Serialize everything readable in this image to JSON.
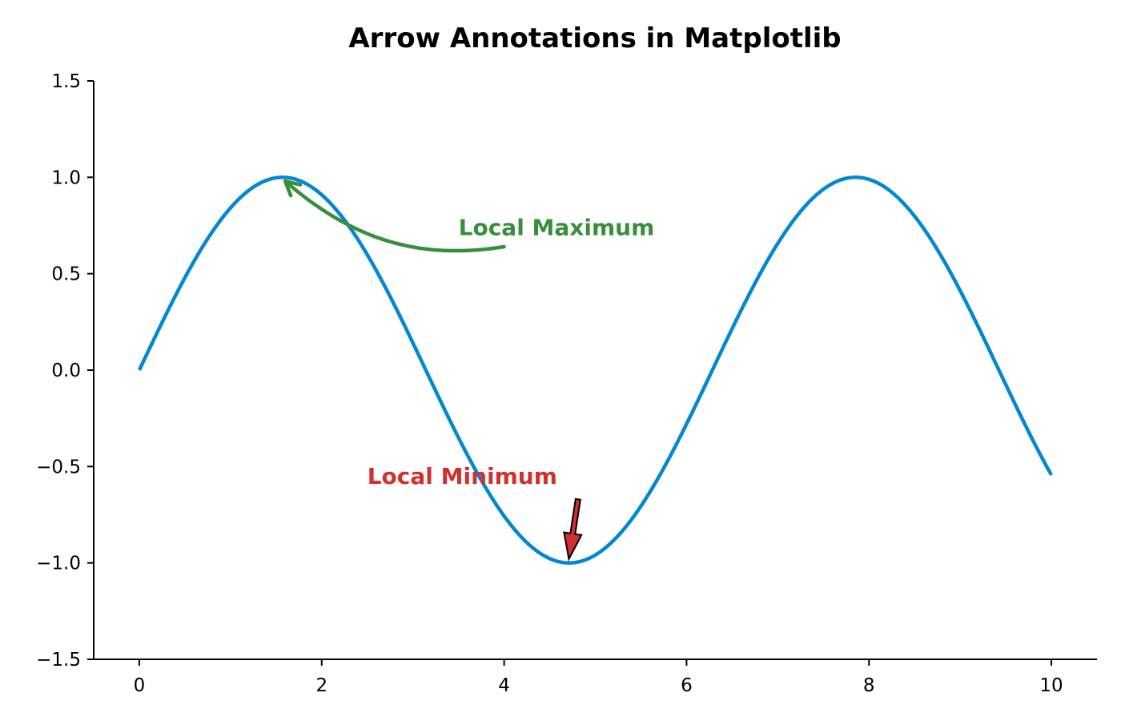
{
  "chart_data": {
    "type": "line",
    "title": "Arrow Annotations in Matplotlib",
    "xlabel": "",
    "ylabel": "",
    "xlim": [
      -0.5,
      10.5
    ],
    "ylim": [
      -1.5,
      1.5
    ],
    "x_ticks": [
      0,
      2,
      4,
      6,
      8,
      10
    ],
    "x_tick_labels": [
      "0",
      "2",
      "4",
      "6",
      "8",
      "10"
    ],
    "y_ticks": [
      1.5,
      1.0,
      0.5,
      0.0,
      -0.5,
      -1.0,
      -1.5
    ],
    "y_tick_labels": [
      "1.5",
      "1.0",
      "0.5",
      "0.0",
      "−0.5",
      "−1.0",
      "−1.5"
    ],
    "grid": false,
    "series": [
      {
        "function": "sin(x)",
        "x_range": [
          0,
          10
        ],
        "color": "#0288d1"
      }
    ],
    "annotations": [
      {
        "text": "Local Maximum",
        "color": "#388e3c",
        "text_xy": [
          3.5,
          0.7
        ],
        "target_xy": [
          1.6,
          0.98
        ],
        "tail_xy": [
          4.0,
          0.64
        ],
        "arrow_style": "curved"
      },
      {
        "text": "Local Minimum",
        "color": "#d32f2f",
        "text_xy": [
          2.5,
          -0.59
        ],
        "target_xy": [
          4.71,
          -0.98
        ],
        "tail_xy": [
          4.81,
          -0.67
        ],
        "arrow_style": "fancy"
      }
    ]
  }
}
